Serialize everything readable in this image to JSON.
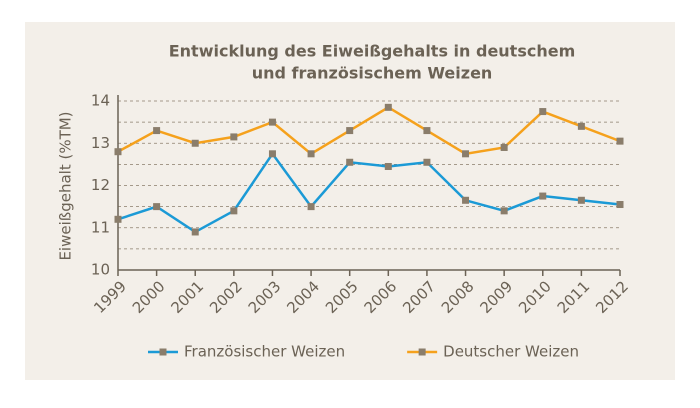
{
  "chart_data": {
    "type": "line",
    "title": [
      "Entwicklung des Eiweißgehalts in deutschem",
      "und französischem Weizen"
    ],
    "y_label": "Eiweißgehalt (%TM)",
    "categories": [
      "1999",
      "2000",
      "2001",
      "2002",
      "2003",
      "2004",
      "2005",
      "2006",
      "2007",
      "2008",
      "2009",
      "2010",
      "2011",
      "2012"
    ],
    "series": [
      {
        "name": "Französischer Weizen",
        "color": "#1b9ad6",
        "values": [
          11.2,
          11.5,
          10.9,
          11.4,
          12.75,
          11.5,
          12.55,
          12.45,
          12.55,
          11.65,
          11.4,
          11.75,
          11.65,
          11.55
        ]
      },
      {
        "name": "Deutscher Weizen",
        "color": "#f5a11c",
        "values": [
          12.8,
          13.3,
          13.0,
          13.15,
          13.5,
          12.75,
          13.3,
          13.85,
          13.3,
          12.75,
          12.9,
          13.75,
          13.4,
          13.05
        ]
      }
    ],
    "marker_color": "#8a7d6b",
    "ylim": [
      10,
      14
    ],
    "yticks": [
      10,
      11,
      12,
      13,
      14
    ],
    "minor_yticks": [
      10.5,
      11.5,
      12.5,
      13.5
    ],
    "grid": true,
    "legend": "bottom"
  }
}
